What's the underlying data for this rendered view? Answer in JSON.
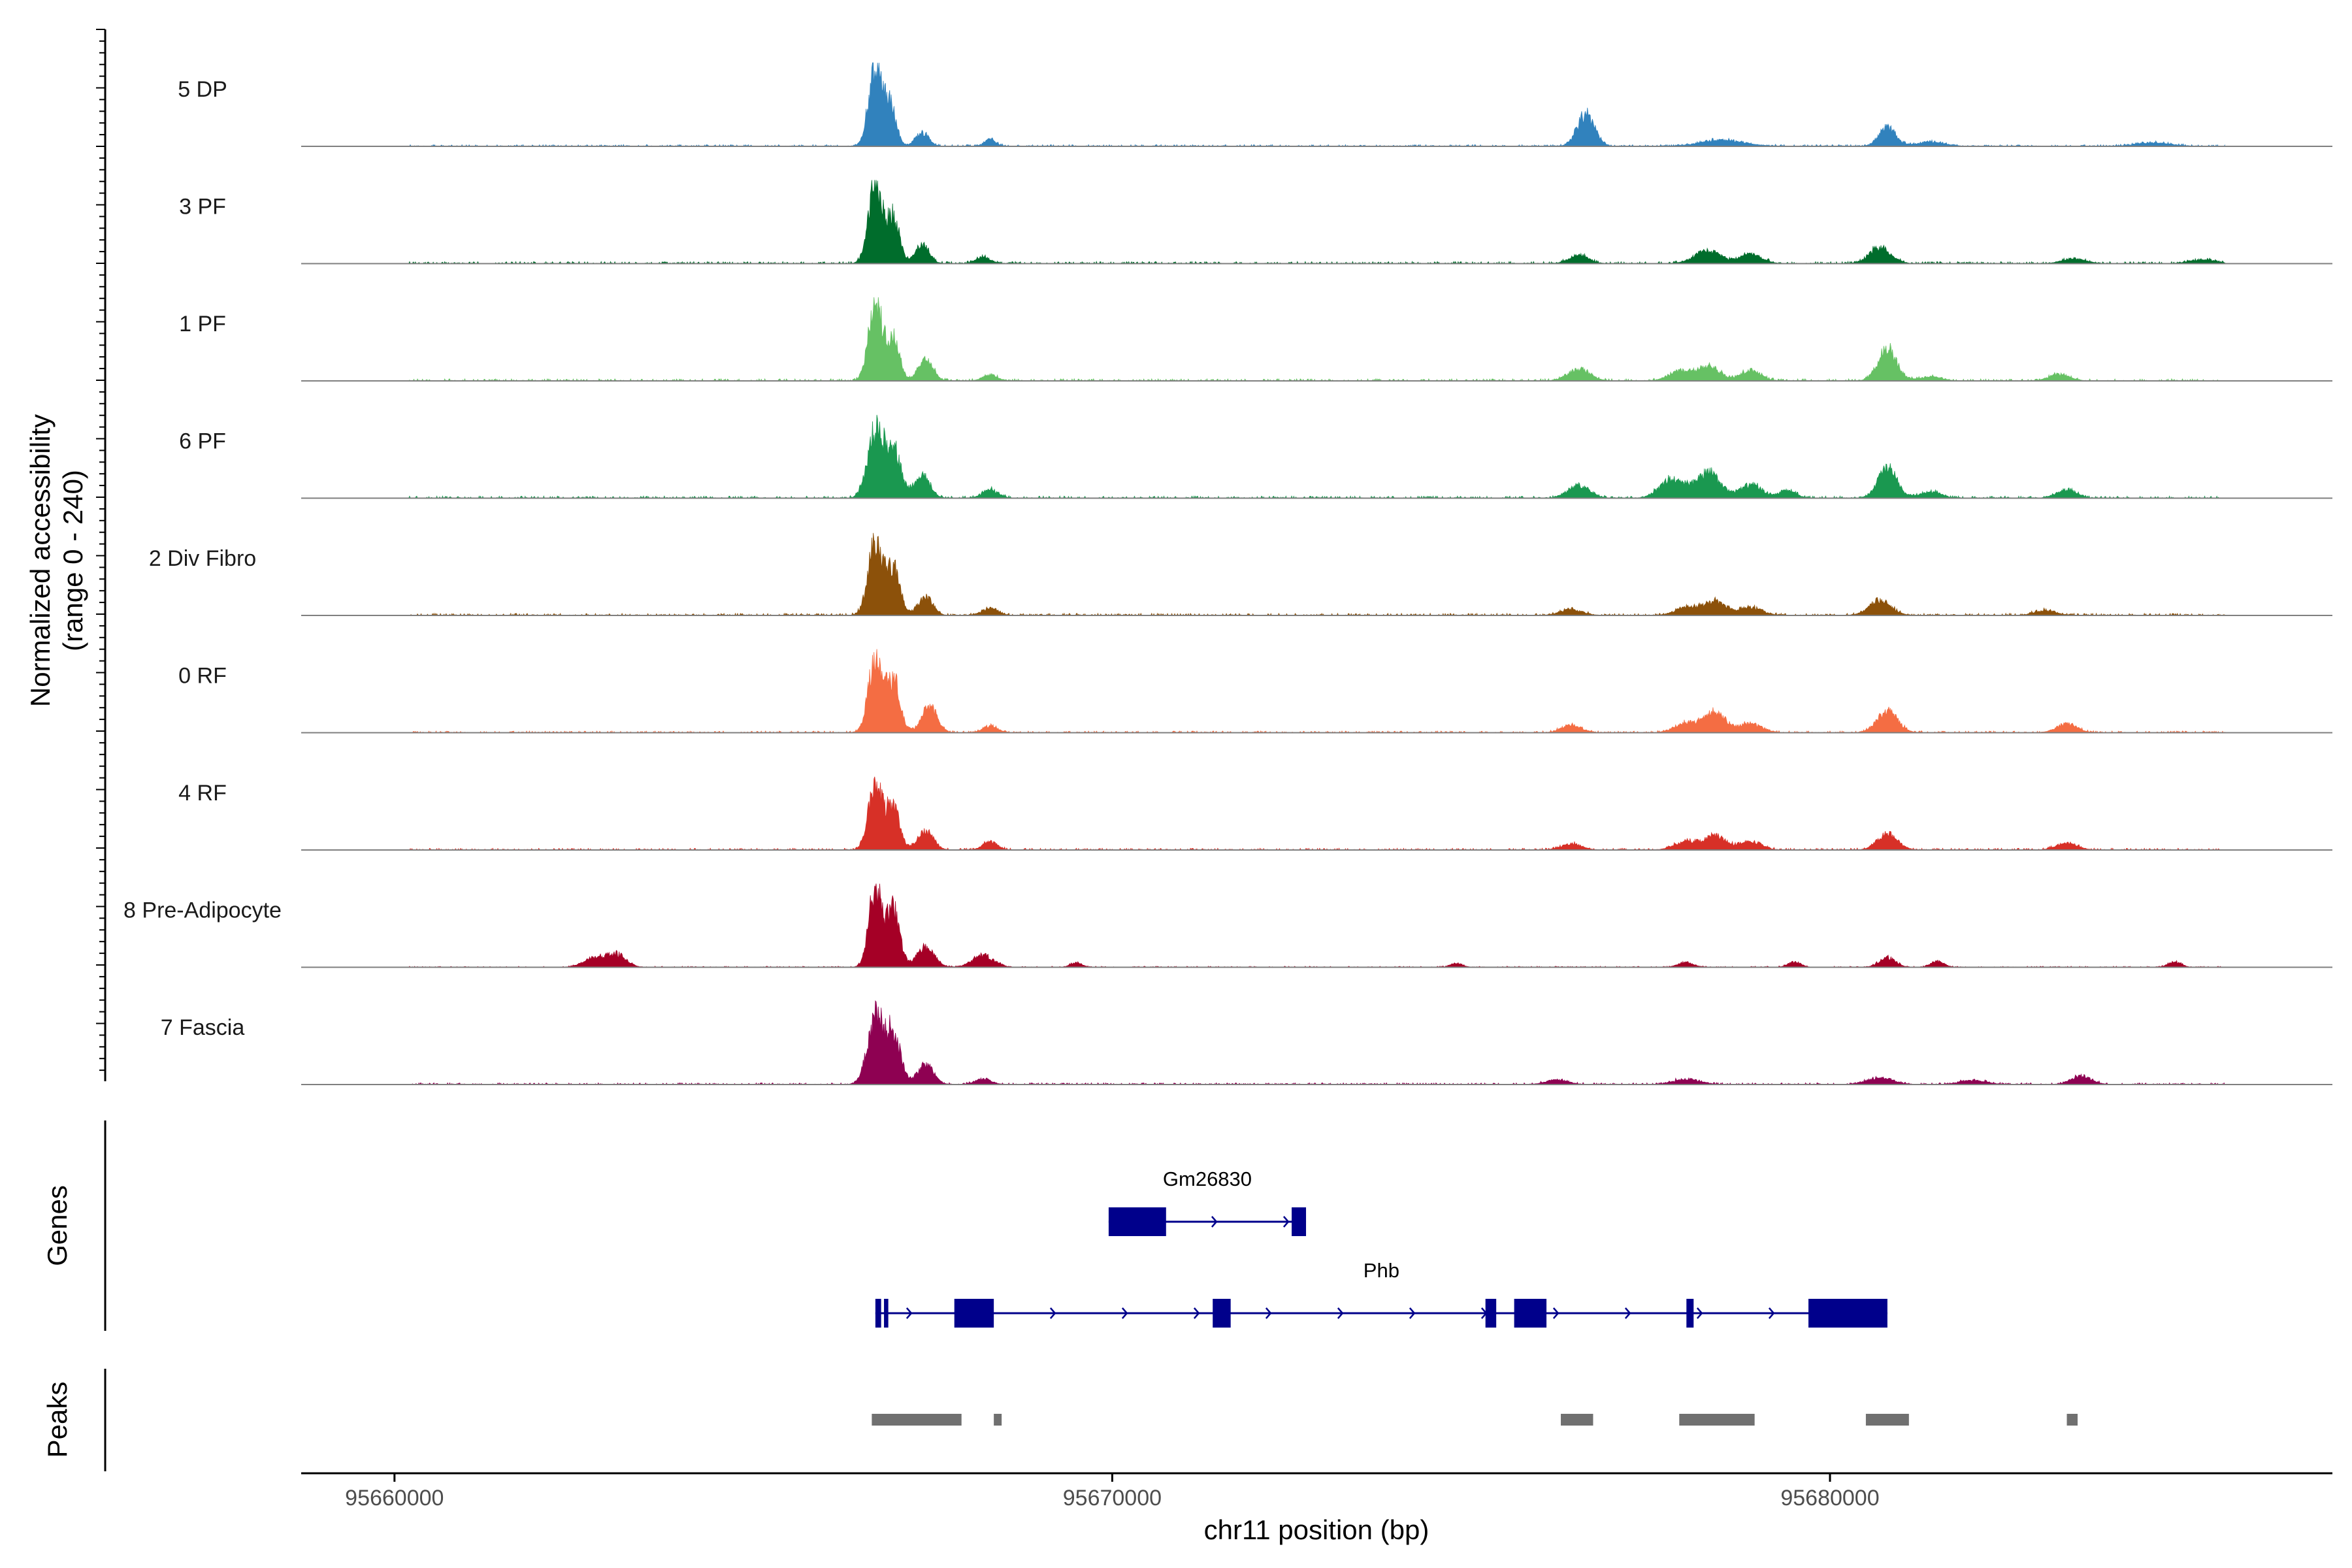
{
  "chart_data": {
    "type": "area",
    "title": "",
    "ylabel": "Normalized accessibility\n(range 0 - 240)",
    "y_range_text": "(range 0 - 240)",
    "ylabel_main": "Normalized accessibility",
    "xlabel": "chr11 position (bp)",
    "xlim": [
      95658700,
      95687000
    ],
    "ylim": [
      0,
      240
    ],
    "xticks": [
      95660000,
      95670000,
      95680000
    ],
    "xtick_labels": [
      "95660000",
      "95670000",
      "95680000"
    ],
    "grid": false,
    "tracks": [
      {
        "name": "5 DP",
        "color": "#3182bd",
        "noise": 5,
        "peaks": [
          [
            95666700,
            230,
            95
          ],
          [
            95666900,
            120,
            85
          ],
          [
            95667350,
            40,
            90
          ],
          [
            95668300,
            20,
            80
          ],
          [
            95676600,
            95,
            120
          ],
          [
            95678500,
            18,
            300
          ],
          [
            95680800,
            55,
            120
          ],
          [
            95681400,
            12,
            200
          ],
          [
            95684500,
            10,
            250
          ]
        ]
      },
      {
        "name": "3 PF",
        "color": "#006d2c",
        "noise": 6,
        "peaks": [
          [
            95666700,
            240,
            95
          ],
          [
            95666950,
            140,
            85
          ],
          [
            95667350,
            55,
            95
          ],
          [
            95668200,
            20,
            100
          ],
          [
            95676500,
            25,
            130
          ],
          [
            95678300,
            38,
            180
          ],
          [
            95678900,
            28,
            150
          ],
          [
            95680700,
            48,
            150
          ],
          [
            95683400,
            14,
            160
          ],
          [
            95685200,
            12,
            180
          ]
        ]
      },
      {
        "name": "1 PF",
        "color": "#66c164",
        "noise": 6,
        "peaks": [
          [
            95666700,
            235,
            95
          ],
          [
            95666950,
            130,
            85
          ],
          [
            95667400,
            65,
            100
          ],
          [
            95668300,
            18,
            100
          ],
          [
            95676500,
            35,
            150
          ],
          [
            95677900,
            28,
            150
          ],
          [
            95678300,
            45,
            160
          ],
          [
            95678900,
            30,
            140
          ],
          [
            95680800,
            95,
            130
          ],
          [
            95681400,
            12,
            150
          ],
          [
            95683200,
            20,
            140
          ]
        ]
      },
      {
        "name": "6 PF",
        "color": "#1a9850",
        "noise": 6,
        "peaks": [
          [
            95666700,
            200,
            110
          ],
          [
            95666950,
            150,
            100
          ],
          [
            95667350,
            65,
            110
          ],
          [
            95668300,
            25,
            110
          ],
          [
            95676500,
            38,
            150
          ],
          [
            95677800,
            55,
            170
          ],
          [
            95678300,
            75,
            170
          ],
          [
            95678900,
            40,
            150
          ],
          [
            95679400,
            22,
            120
          ],
          [
            95680800,
            90,
            130
          ],
          [
            95681400,
            18,
            150
          ],
          [
            95683300,
            25,
            140
          ]
        ]
      },
      {
        "name": "2 Div Fibro",
        "color": "#8c510a",
        "noise": 6,
        "peaks": [
          [
            95666700,
            220,
            100
          ],
          [
            95666950,
            140,
            95
          ],
          [
            95667400,
            55,
            100
          ],
          [
            95668300,
            20,
            110
          ],
          [
            95676400,
            18,
            150
          ],
          [
            95678000,
            22,
            160
          ],
          [
            95678400,
            40,
            160
          ],
          [
            95678900,
            24,
            150
          ],
          [
            95680700,
            45,
            150
          ],
          [
            95683000,
            14,
            150
          ]
        ]
      },
      {
        "name": "0 RF",
        "color": "#f46d43",
        "noise": 5,
        "peaks": [
          [
            95666700,
            230,
            95
          ],
          [
            95666950,
            160,
            90
          ],
          [
            95667450,
            75,
            110
          ],
          [
            95668300,
            20,
            100
          ],
          [
            95676400,
            22,
            140
          ],
          [
            95678000,
            30,
            160
          ],
          [
            95678400,
            60,
            150
          ],
          [
            95678900,
            28,
            150
          ],
          [
            95680800,
            65,
            140
          ],
          [
            95683300,
            26,
            140
          ]
        ]
      },
      {
        "name": "4 RF",
        "color": "#d73027",
        "noise": 5,
        "peaks": [
          [
            95666700,
            200,
            95
          ],
          [
            95666950,
            130,
            90
          ],
          [
            95667400,
            55,
            110
          ],
          [
            95668300,
            24,
            100
          ],
          [
            95676400,
            18,
            140
          ],
          [
            95678000,
            25,
            160
          ],
          [
            95678400,
            42,
            150
          ],
          [
            95678900,
            25,
            150
          ],
          [
            95680800,
            48,
            140
          ],
          [
            95683300,
            22,
            140
          ]
        ]
      },
      {
        "name": "8 Pre-Adipocyte",
        "color": "#a50026",
        "noise": 3,
        "peaks": [
          [
            95662800,
            28,
            160
          ],
          [
            95663100,
            35,
            130
          ],
          [
            95666700,
            240,
            90
          ],
          [
            95666950,
            170,
            90
          ],
          [
            95667400,
            60,
            120
          ],
          [
            95668200,
            35,
            150
          ],
          [
            95669500,
            14,
            80
          ],
          [
            95674800,
            12,
            80
          ],
          [
            95678000,
            14,
            100
          ],
          [
            95679500,
            16,
            90
          ],
          [
            95680800,
            30,
            110
          ],
          [
            95681500,
            18,
            90
          ],
          [
            95684800,
            16,
            90
          ]
        ]
      },
      {
        "name": "7 Fascia",
        "color": "#8e0152",
        "noise": 5,
        "peaks": [
          [
            95666700,
            200,
            110
          ],
          [
            95666950,
            150,
            100
          ],
          [
            95667400,
            60,
            110
          ],
          [
            95668200,
            16,
            110
          ],
          [
            95676200,
            14,
            150
          ],
          [
            95678000,
            16,
            180
          ],
          [
            95680700,
            20,
            180
          ],
          [
            95682000,
            12,
            180
          ],
          [
            95683500,
            25,
            140
          ]
        ]
      }
    ],
    "genes_label": "Genes",
    "peaks_label": "Peaks",
    "genes": [
      {
        "name": "Gm26830",
        "start": 95669950,
        "end": 95672700,
        "strand": "+",
        "exons": [
          [
            95669950,
            95670750
          ],
          [
            95672500,
            95672700
          ]
        ]
      },
      {
        "name": "Phb",
        "start": 95666700,
        "end": 95680800,
        "strand": "+",
        "exons": [
          [
            95666700,
            95666780
          ],
          [
            95666820,
            95666880
          ],
          [
            95667800,
            95668350
          ],
          [
            95671400,
            95671650
          ],
          [
            95675200,
            95675350
          ],
          [
            95675600,
            95676050
          ],
          [
            95678000,
            95678100
          ],
          [
            95679700,
            95680800
          ]
        ]
      }
    ],
    "peak_regions": [
      [
        95666650,
        95667900
      ],
      [
        95668350,
        95668450
      ],
      [
        95676250,
        95676700
      ],
      [
        95677900,
        95678950
      ],
      [
        95680500,
        95681100
      ],
      [
        95683300,
        95683450
      ]
    ]
  },
  "colors": {
    "axis": "#000000",
    "baseline": "#7f7f7f",
    "gene": "#00008b",
    "peak": "#707070"
  }
}
